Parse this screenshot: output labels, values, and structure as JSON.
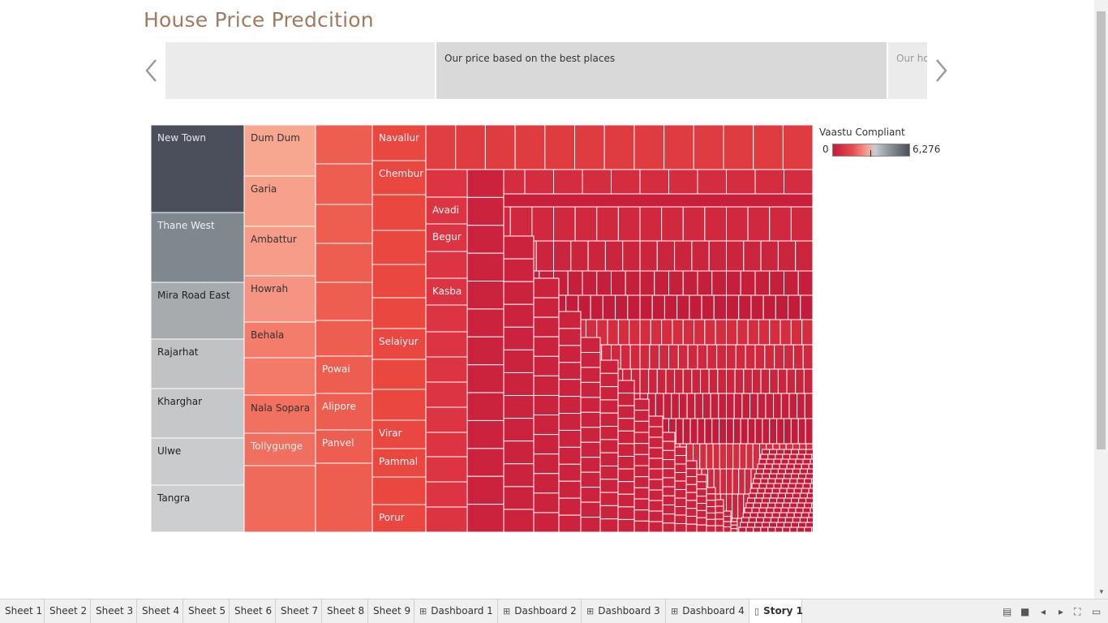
{
  "story": {
    "title": "House Price Predcition",
    "captions": [
      {
        "text": "",
        "state": "previous"
      },
      {
        "text": "Our price based on the best places",
        "state": "current"
      },
      {
        "text": "Our ho",
        "state": "next"
      }
    ]
  },
  "legend": {
    "title": "Vaastu Compliant",
    "min_label": "0",
    "max_label": "6,276",
    "colors": [
      "#c41b3a",
      "#e84a4e",
      "#f6a08f",
      "#c8ccd0",
      "#8a9097",
      "#4a4f5a"
    ]
  },
  "chart_data": {
    "type": "treemap",
    "measure": "Vaastu Compliant",
    "color_range": [
      0,
      6276
    ],
    "labeled_tiles": [
      {
        "column": 1,
        "label": "New Town"
      },
      {
        "column": 1,
        "label": "Thane West"
      },
      {
        "column": 1,
        "label": "Mira Road East"
      },
      {
        "column": 1,
        "label": "Rajarhat"
      },
      {
        "column": 1,
        "label": "Kharghar"
      },
      {
        "column": 1,
        "label": "Ulwe"
      },
      {
        "column": 1,
        "label": "Tangra"
      },
      {
        "column": 2,
        "label": "Dum Dum"
      },
      {
        "column": 2,
        "label": "Garia"
      },
      {
        "column": 2,
        "label": "Ambattur"
      },
      {
        "column": 2,
        "label": "Howrah"
      },
      {
        "column": 2,
        "label": "Behala"
      },
      {
        "column": 2,
        "label": "Nala Sopara"
      },
      {
        "column": 2,
        "label": "Tollygunge"
      },
      {
        "column": 3,
        "label": "Powai"
      },
      {
        "column": 3,
        "label": "Alipore"
      },
      {
        "column": 3,
        "label": "Panvel"
      },
      {
        "column": 4,
        "label": "Navallur"
      },
      {
        "column": 4,
        "label": "Chembur"
      },
      {
        "column": 4,
        "label": "Selaiyur"
      },
      {
        "column": 4,
        "label": "Virar"
      },
      {
        "column": 4,
        "label": "Pammal"
      },
      {
        "column": 4,
        "label": "Porur"
      },
      {
        "column": 5,
        "label": "Avadi"
      },
      {
        "column": 5,
        "label": "Begur"
      },
      {
        "column": 5,
        "label": "Kasba"
      }
    ]
  },
  "tabs": [
    {
      "label": "Sheet 1",
      "icon": "none"
    },
    {
      "label": "Sheet 2",
      "icon": "none"
    },
    {
      "label": "Sheet 3",
      "icon": "none"
    },
    {
      "label": "Sheet 4",
      "icon": "none"
    },
    {
      "label": "Sheet 5",
      "icon": "none"
    },
    {
      "label": "Sheet 6",
      "icon": "none"
    },
    {
      "label": "Sheet 7",
      "icon": "none"
    },
    {
      "label": "Sheet 8",
      "icon": "none"
    },
    {
      "label": "Sheet 9",
      "icon": "none"
    },
    {
      "label": "Dashboard 1",
      "icon": "dashboard-icon"
    },
    {
      "label": "Dashboard 2",
      "icon": "dashboard-icon"
    },
    {
      "label": "Dashboard 3",
      "icon": "dashboard-icon"
    },
    {
      "label": "Dashboard 4",
      "icon": "dashboard-icon"
    },
    {
      "label": "Story 1",
      "icon": "story-icon",
      "active": true
    }
  ]
}
